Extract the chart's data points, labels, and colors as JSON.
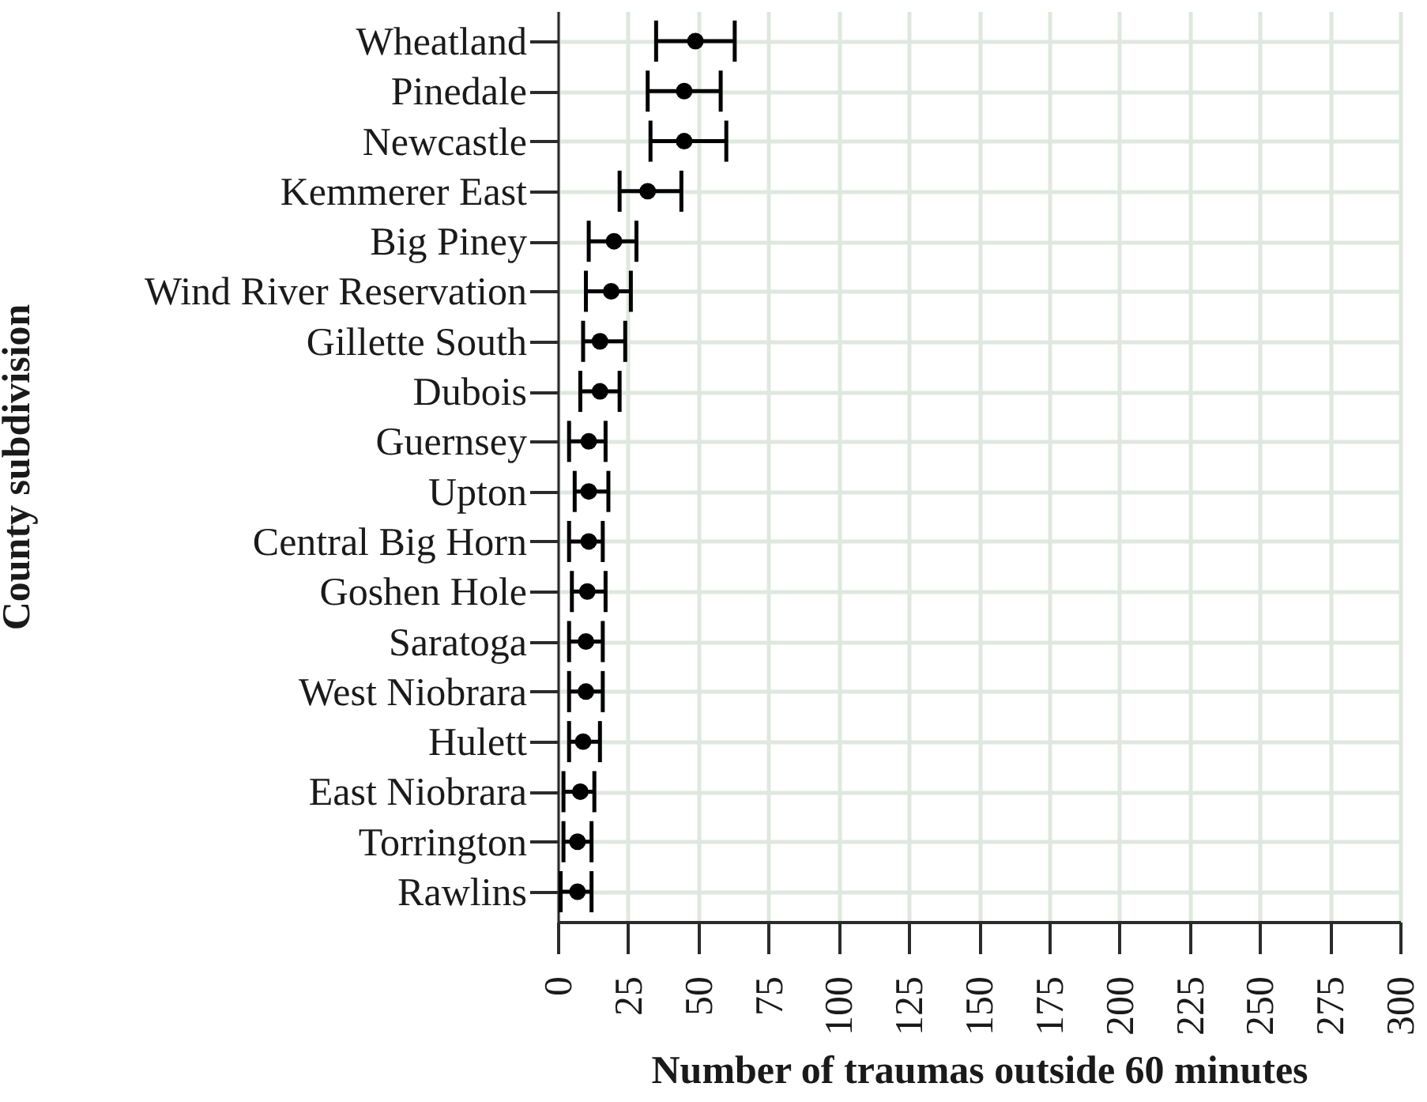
{
  "chart_data": {
    "type": "scatter",
    "orientation": "horizontal",
    "xlabel": "Number of traumas outside 60 minutes",
    "ylabel": "County subdivision",
    "categories": [
      "Wheatland",
      "Pinedale",
      "Newcastle",
      "Kemmerer East",
      "Big Piney",
      "Wind River Reservation",
      "Gillette South",
      "Dubois",
      "Guernsey",
      "Upton",
      "Central Big Horn",
      "Goshen Hole",
      "Saratoga",
      "West Niobrara",
      "Hulett",
      "East Niobrara",
      "Torrington",
      "Rawlins"
    ],
    "values": [
      49,
      45,
      45,
      32,
      20,
      19,
      15,
      15,
      11,
      11,
      11,
      10.5,
      10,
      10,
      9,
      8,
      7,
      7
    ],
    "errors": [
      [
        35,
        63
      ],
      [
        32,
        58
      ],
      [
        33,
        60
      ],
      [
        22,
        44
      ],
      [
        11,
        28
      ],
      [
        10,
        26
      ],
      [
        9,
        24
      ],
      [
        8,
        22
      ],
      [
        4,
        17
      ],
      [
        6,
        18
      ],
      [
        4,
        16
      ],
      [
        5,
        17
      ],
      [
        4,
        16
      ],
      [
        4,
        16
      ],
      [
        4,
        15
      ],
      [
        2,
        13
      ],
      [
        2,
        12
      ],
      [
        1,
        12
      ]
    ],
    "color": "#000000",
    "xlim": [
      0,
      300
    ],
    "xticks": [
      0,
      25,
      50,
      75,
      100,
      125,
      150,
      175,
      200,
      225,
      250,
      275,
      300
    ],
    "grid": true,
    "marker": "circle"
  }
}
